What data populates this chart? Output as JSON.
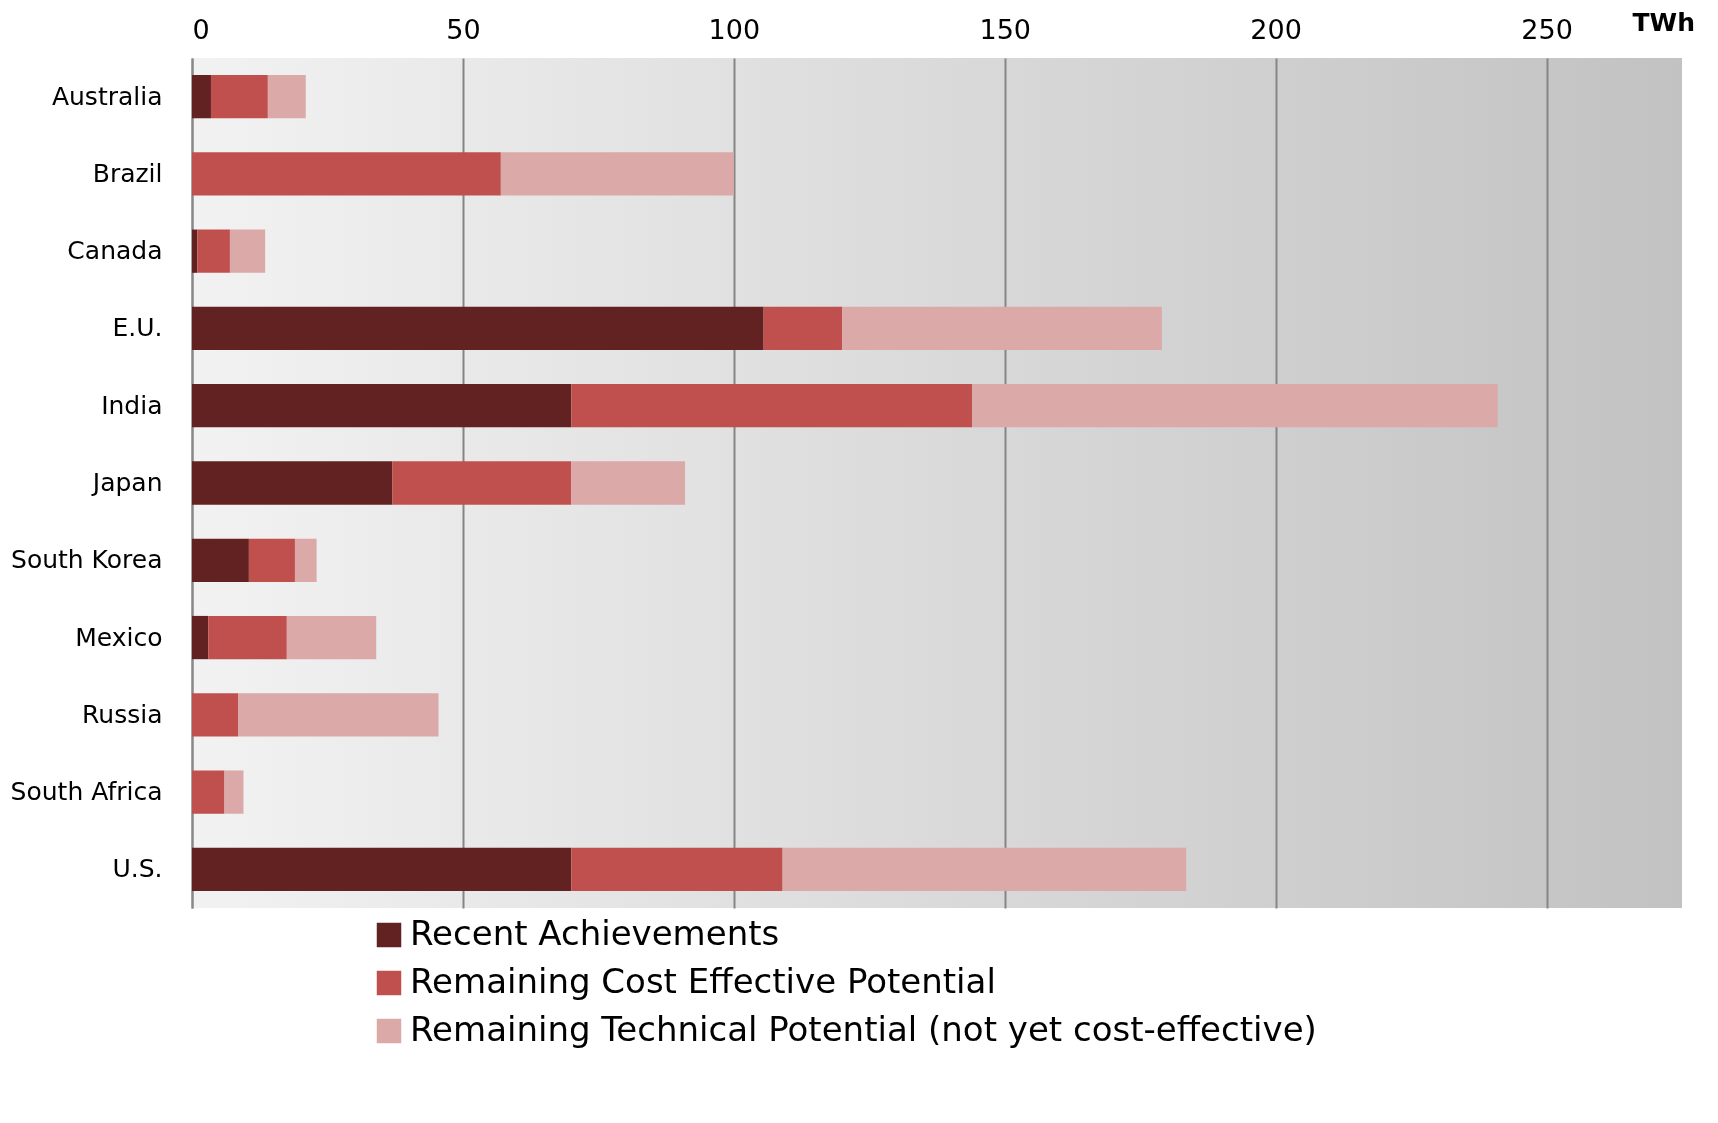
{
  "chart_data": {
    "type": "bar",
    "orientation": "horizontal",
    "stacked": true,
    "xlabel": "TWh",
    "categories": [
      "Australia",
      "Brazil",
      "Canada",
      "E.U.",
      "India",
      "Japan",
      "South Korea",
      "Mexico",
      "Russia",
      "South Africa",
      "U.S."
    ],
    "series": [
      {
        "name": "Recent Achievements",
        "color": "#622222",
        "values": [
          3.5,
          0,
          1,
          105.5,
          70,
          37,
          10.5,
          3,
          0,
          0,
          70
        ]
      },
      {
        "name": "Remaining Cost Effective Potential",
        "color": "#c0504d",
        "values": [
          10.5,
          57,
          6,
          14.5,
          74,
          33,
          8.5,
          14.5,
          8.5,
          6,
          39
        ]
      },
      {
        "name": "Remaining Technical Potential (not yet cost-effective)",
        "color": "#dba9a8",
        "values": [
          7,
          43,
          6.5,
          59,
          97,
          21,
          4,
          16.5,
          37,
          3.5,
          74.5
        ]
      }
    ],
    "xlim": [
      0,
      275
    ],
    "xticks": [
      0,
      50,
      100,
      150,
      200,
      250
    ],
    "grid": "x",
    "legend": "bottom"
  }
}
